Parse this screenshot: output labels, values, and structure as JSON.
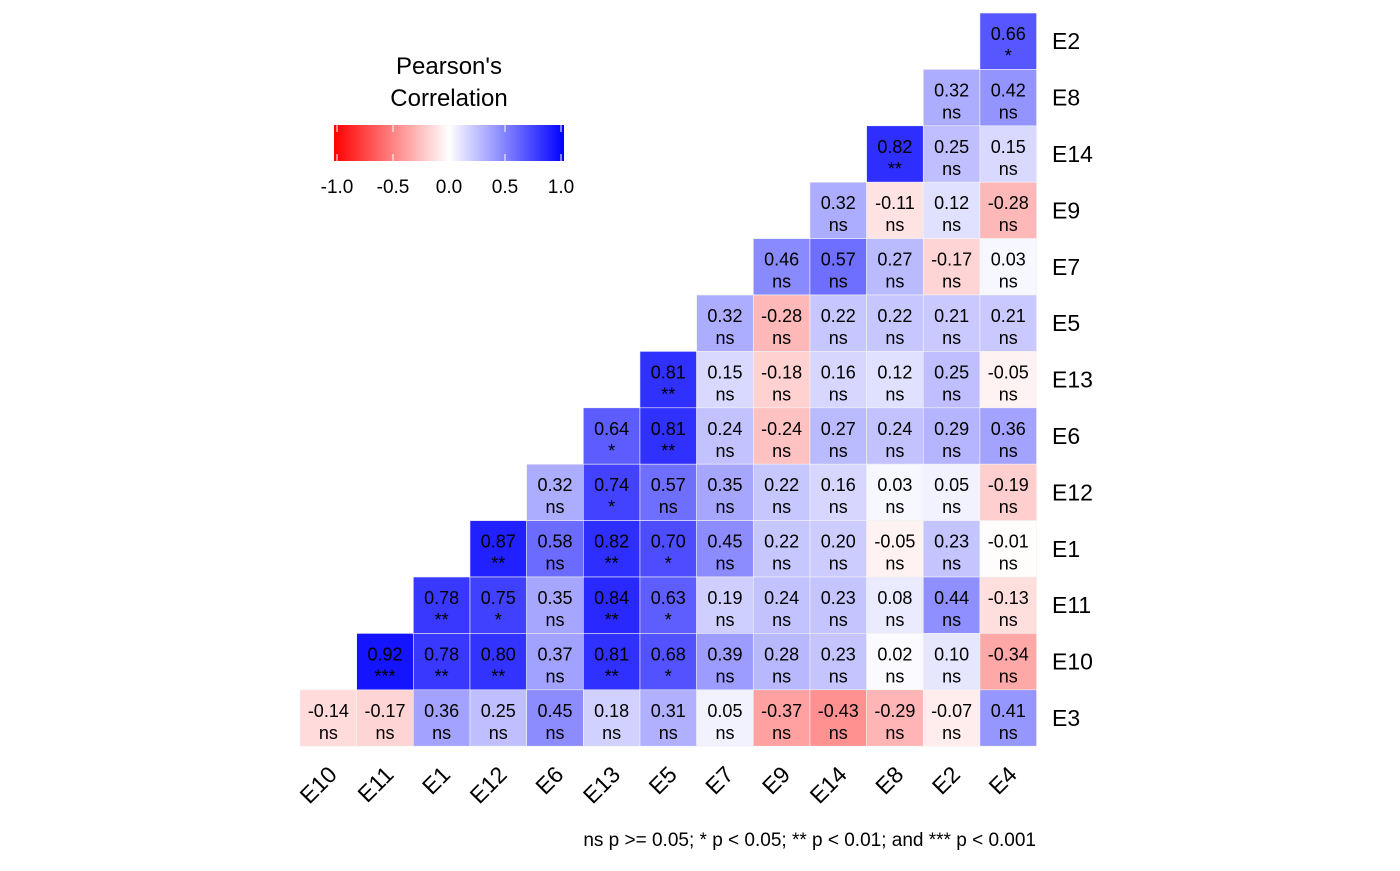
{
  "chart_data": {
    "type": "heatmap",
    "title": "",
    "xlabel": "",
    "ylabel": "",
    "x_categories": [
      "E10",
      "E11",
      "E1",
      "E12",
      "E6",
      "E13",
      "E5",
      "E7",
      "E9",
      "E14",
      "E8",
      "E2",
      "E4"
    ],
    "y_categories": [
      "E2",
      "E8",
      "E14",
      "E9",
      "E7",
      "E5",
      "E13",
      "E6",
      "E12",
      "E1",
      "E11",
      "E10",
      "E3"
    ],
    "rows": [
      {
        "y": "E2",
        "cells": [
          {
            "x": "E4",
            "r": 0.66,
            "sig": "*"
          }
        ]
      },
      {
        "y": "E8",
        "cells": [
          {
            "x": "E2",
            "r": 0.32,
            "sig": "ns"
          },
          {
            "x": "E4",
            "r": 0.42,
            "sig": "ns"
          }
        ]
      },
      {
        "y": "E14",
        "cells": [
          {
            "x": "E8",
            "r": 0.82,
            "sig": "**"
          },
          {
            "x": "E2",
            "r": 0.25,
            "sig": "ns"
          },
          {
            "x": "E4",
            "r": 0.15,
            "sig": "ns"
          }
        ]
      },
      {
        "y": "E9",
        "cells": [
          {
            "x": "E14",
            "r": 0.32,
            "sig": "ns"
          },
          {
            "x": "E8",
            "r": -0.11,
            "sig": "ns"
          },
          {
            "x": "E2",
            "r": 0.12,
            "sig": "ns"
          },
          {
            "x": "E4",
            "r": -0.28,
            "sig": "ns"
          }
        ]
      },
      {
        "y": "E7",
        "cells": [
          {
            "x": "E9",
            "r": 0.46,
            "sig": "ns"
          },
          {
            "x": "E14",
            "r": 0.57,
            "sig": "ns"
          },
          {
            "x": "E8",
            "r": 0.27,
            "sig": "ns"
          },
          {
            "x": "E2",
            "r": -0.17,
            "sig": "ns"
          },
          {
            "x": "E4",
            "r": 0.03,
            "sig": "ns"
          }
        ]
      },
      {
        "y": "E5",
        "cells": [
          {
            "x": "E7",
            "r": 0.32,
            "sig": "ns"
          },
          {
            "x": "E9",
            "r": -0.28,
            "sig": "ns"
          },
          {
            "x": "E14",
            "r": 0.22,
            "sig": "ns"
          },
          {
            "x": "E8",
            "r": 0.22,
            "sig": "ns"
          },
          {
            "x": "E2",
            "r": 0.21,
            "sig": "ns"
          },
          {
            "x": "E4",
            "r": 0.21,
            "sig": "ns"
          }
        ]
      },
      {
        "y": "E13",
        "cells": [
          {
            "x": "E5",
            "r": 0.81,
            "sig": "**"
          },
          {
            "x": "E7",
            "r": 0.15,
            "sig": "ns"
          },
          {
            "x": "E9",
            "r": -0.18,
            "sig": "ns"
          },
          {
            "x": "E14",
            "r": 0.16,
            "sig": "ns"
          },
          {
            "x": "E8",
            "r": 0.12,
            "sig": "ns"
          },
          {
            "x": "E2",
            "r": 0.25,
            "sig": "ns"
          },
          {
            "x": "E4",
            "r": -0.05,
            "sig": "ns"
          }
        ]
      },
      {
        "y": "E6",
        "cells": [
          {
            "x": "E13",
            "r": 0.64,
            "sig": "*"
          },
          {
            "x": "E5",
            "r": 0.81,
            "sig": "**"
          },
          {
            "x": "E7",
            "r": 0.24,
            "sig": "ns"
          },
          {
            "x": "E9",
            "r": -0.24,
            "sig": "ns"
          },
          {
            "x": "E14",
            "r": 0.27,
            "sig": "ns"
          },
          {
            "x": "E8",
            "r": 0.24,
            "sig": "ns"
          },
          {
            "x": "E2",
            "r": 0.29,
            "sig": "ns"
          },
          {
            "x": "E4",
            "r": 0.36,
            "sig": "ns"
          }
        ]
      },
      {
        "y": "E12",
        "cells": [
          {
            "x": "E6",
            "r": 0.32,
            "sig": "ns"
          },
          {
            "x": "E13",
            "r": 0.74,
            "sig": "*"
          },
          {
            "x": "E5",
            "r": 0.57,
            "sig": "ns"
          },
          {
            "x": "E7",
            "r": 0.35,
            "sig": "ns"
          },
          {
            "x": "E9",
            "r": 0.22,
            "sig": "ns"
          },
          {
            "x": "E14",
            "r": 0.16,
            "sig": "ns"
          },
          {
            "x": "E8",
            "r": 0.03,
            "sig": "ns"
          },
          {
            "x": "E2",
            "r": 0.05,
            "sig": "ns"
          },
          {
            "x": "E4",
            "r": -0.19,
            "sig": "ns"
          }
        ]
      },
      {
        "y": "E1",
        "cells": [
          {
            "x": "E12",
            "r": 0.87,
            "sig": "**"
          },
          {
            "x": "E6",
            "r": 0.58,
            "sig": "ns"
          },
          {
            "x": "E13",
            "r": 0.82,
            "sig": "**"
          },
          {
            "x": "E5",
            "r": 0.7,
            "sig": "*"
          },
          {
            "x": "E7",
            "r": 0.45,
            "sig": "ns"
          },
          {
            "x": "E9",
            "r": 0.22,
            "sig": "ns"
          },
          {
            "x": "E14",
            "r": 0.2,
            "sig": "ns"
          },
          {
            "x": "E8",
            "r": -0.05,
            "sig": "ns"
          },
          {
            "x": "E2",
            "r": 0.23,
            "sig": "ns"
          },
          {
            "x": "E4",
            "r": -0.01,
            "sig": "ns"
          }
        ]
      },
      {
        "y": "E11",
        "cells": [
          {
            "x": "E1",
            "r": 0.78,
            "sig": "**"
          },
          {
            "x": "E12",
            "r": 0.75,
            "sig": "*"
          },
          {
            "x": "E6",
            "r": 0.35,
            "sig": "ns"
          },
          {
            "x": "E13",
            "r": 0.84,
            "sig": "**"
          },
          {
            "x": "E5",
            "r": 0.63,
            "sig": "*"
          },
          {
            "x": "E7",
            "r": 0.19,
            "sig": "ns"
          },
          {
            "x": "E9",
            "r": 0.24,
            "sig": "ns"
          },
          {
            "x": "E14",
            "r": 0.23,
            "sig": "ns"
          },
          {
            "x": "E8",
            "r": 0.08,
            "sig": "ns"
          },
          {
            "x": "E2",
            "r": 0.44,
            "sig": "ns"
          },
          {
            "x": "E4",
            "r": -0.13,
            "sig": "ns"
          }
        ]
      },
      {
        "y": "E10",
        "cells": [
          {
            "x": "E11",
            "r": 0.92,
            "sig": "***"
          },
          {
            "x": "E1",
            "r": 0.78,
            "sig": "**"
          },
          {
            "x": "E12",
            "r": 0.8,
            "sig": "**"
          },
          {
            "x": "E6",
            "r": 0.37,
            "sig": "ns"
          },
          {
            "x": "E13",
            "r": 0.81,
            "sig": "**"
          },
          {
            "x": "E5",
            "r": 0.68,
            "sig": "*"
          },
          {
            "x": "E7",
            "r": 0.39,
            "sig": "ns"
          },
          {
            "x": "E9",
            "r": 0.28,
            "sig": "ns"
          },
          {
            "x": "E14",
            "r": 0.23,
            "sig": "ns"
          },
          {
            "x": "E8",
            "r": 0.02,
            "sig": "ns"
          },
          {
            "x": "E2",
            "r": 0.1,
            "sig": "ns"
          },
          {
            "x": "E4",
            "r": -0.34,
            "sig": "ns"
          }
        ]
      },
      {
        "y": "E3",
        "cells": [
          {
            "x": "E10",
            "r": -0.14,
            "sig": "ns"
          },
          {
            "x": "E11",
            "r": -0.17,
            "sig": "ns"
          },
          {
            "x": "E1",
            "r": 0.36,
            "sig": "ns"
          },
          {
            "x": "E12",
            "r": 0.25,
            "sig": "ns"
          },
          {
            "x": "E6",
            "r": 0.45,
            "sig": "ns"
          },
          {
            "x": "E13",
            "r": 0.18,
            "sig": "ns"
          },
          {
            "x": "E5",
            "r": 0.31,
            "sig": "ns"
          },
          {
            "x": "E7",
            "r": 0.05,
            "sig": "ns"
          },
          {
            "x": "E9",
            "r": -0.37,
            "sig": "ns"
          },
          {
            "x": "E14",
            "r": -0.43,
            "sig": "ns"
          },
          {
            "x": "E8",
            "r": -0.29,
            "sig": "ns"
          },
          {
            "x": "E2",
            "r": -0.07,
            "sig": "ns"
          },
          {
            "x": "E4",
            "r": 0.41,
            "sig": "ns"
          }
        ]
      }
    ],
    "legend": {
      "title_lines": [
        "Pearson's",
        "Correlation"
      ],
      "ticks": [
        -1.0,
        -0.5,
        0.0,
        0.5,
        1.0
      ],
      "tick_labels": [
        "-1.0",
        "-0.5",
        "0.0",
        "0.5",
        "1.0"
      ],
      "range": [
        -1.0,
        1.0
      ],
      "colors": {
        "low": "#ff0000",
        "mid": "#ffffff",
        "high": "#0000ff"
      },
      "placement": "top-left"
    },
    "footnote": "ns p >= 0.05; * p < 0.05; ** p < 0.01; and *** p < 0.001",
    "grid": false
  }
}
